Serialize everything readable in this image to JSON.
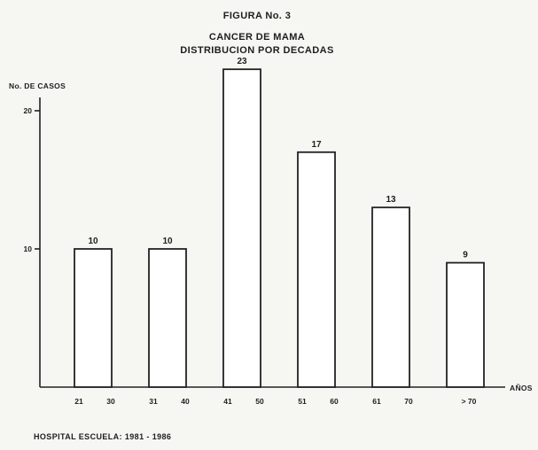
{
  "chart_data": {
    "type": "bar",
    "figure_label": "FIGURA No. 3",
    "title": "CANCER DE MAMA",
    "subtitle": "DISTRIBUCION POR DECADAS",
    "ylabel": "No. DE CASOS",
    "xlabel": "AÑOS",
    "categories": [
      "21 30",
      "31 40",
      "41 50",
      "51 60",
      "61 70",
      "> 70"
    ],
    "category_ticks": [
      [
        "21",
        "30"
      ],
      [
        "31",
        "40"
      ],
      [
        "41",
        "50"
      ],
      [
        "51",
        "60"
      ],
      [
        "61",
        "70"
      ],
      [
        "> 70"
      ]
    ],
    "values": [
      10,
      10,
      23,
      17,
      13,
      9
    ],
    "value_labels": [
      "10",
      "10",
      "23",
      "17",
      "13",
      "9"
    ],
    "y_ticks": [
      10,
      20
    ],
    "y_tick_labels": [
      "10",
      "20"
    ],
    "ylim": [
      0,
      23
    ],
    "grid": false,
    "source": "HOSPITAL ESCUELA: 1981 - 1986"
  }
}
